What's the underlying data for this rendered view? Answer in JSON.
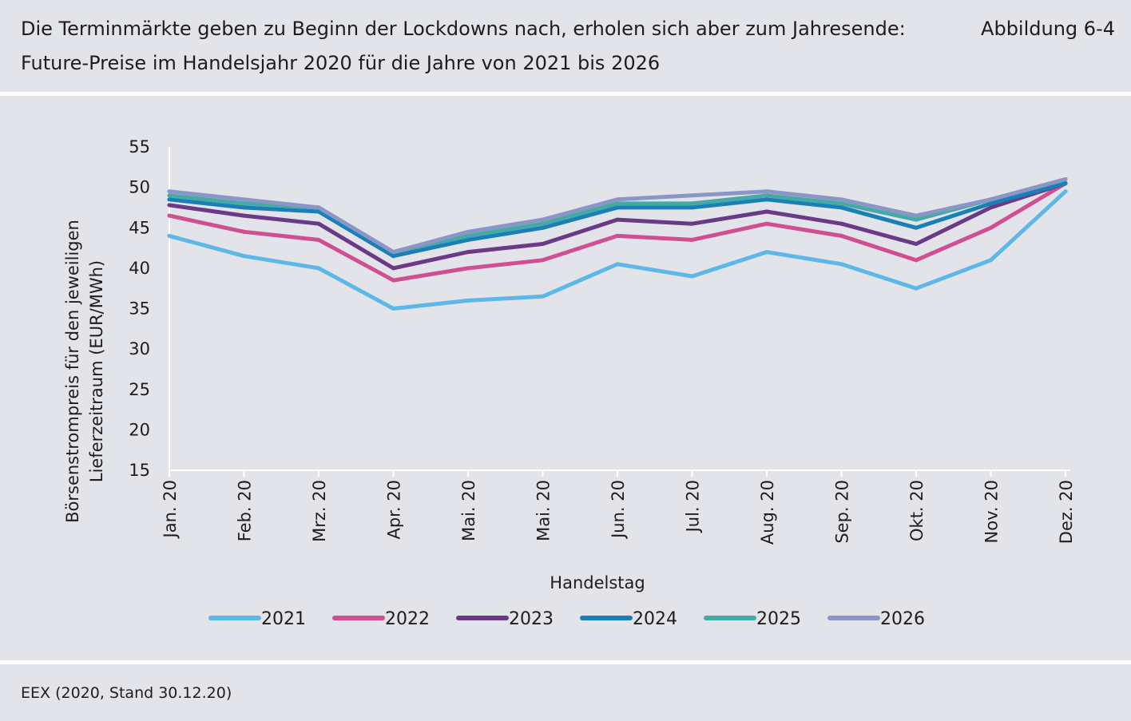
{
  "header": {
    "title_line1": "Die Terminmärkte geben zu Beginn der Lockdowns nach, erholen sich aber zum Jahresende:",
    "title_line2": "Future-Preise im Handelsjahr 2020 für die Jahre von 2021 bis 2026",
    "figure_label": "Abbildung 6-4"
  },
  "source": "EEX (2020, Stand 30.12.20)",
  "chart_data": {
    "type": "line",
    "xlabel": "Handelstag",
    "ylabel_lines": [
      "Börsenstrompreis für den jeweiligen",
      "Lieferzeitraum (EUR/MWh)"
    ],
    "ylim": [
      15,
      55
    ],
    "yticks": [
      15,
      20,
      25,
      30,
      35,
      40,
      45,
      50,
      55
    ],
    "categories": [
      "Jan. 20",
      "Feb. 20",
      "Mrz. 20",
      "Apr. 20",
      "Mai. 20",
      "Mai. 20",
      "Jun. 20",
      "Jul. 20",
      "Aug. 20",
      "Sep. 20",
      "Okt. 20",
      "Nov. 20",
      "Dez. 20"
    ],
    "grid": false,
    "legend_position": "bottom",
    "series": [
      {
        "name": "2021",
        "color": "#5db8e8",
        "values": [
          44.0,
          41.5,
          40.0,
          35.0,
          36.0,
          36.5,
          40.5,
          39.0,
          42.0,
          40.5,
          37.5,
          41.0,
          49.5
        ]
      },
      {
        "name": "2022",
        "color": "#d04f93",
        "values": [
          46.5,
          44.5,
          43.5,
          38.5,
          40.0,
          41.0,
          44.0,
          43.5,
          45.5,
          44.0,
          41.0,
          45.0,
          50.5
        ]
      },
      {
        "name": "2023",
        "color": "#6b3a87",
        "values": [
          47.8,
          46.5,
          45.5,
          40.0,
          42.0,
          43.0,
          46.0,
          45.5,
          47.0,
          45.5,
          43.0,
          47.5,
          50.5
        ]
      },
      {
        "name": "2024",
        "color": "#1a7fb5",
        "values": [
          48.5,
          47.5,
          47.0,
          41.5,
          43.5,
          45.0,
          47.5,
          47.5,
          48.5,
          47.5,
          45.0,
          48.0,
          50.5
        ]
      },
      {
        "name": "2025",
        "color": "#45a9a6",
        "values": [
          49.0,
          48.0,
          47.5,
          42.0,
          44.0,
          45.5,
          48.0,
          48.0,
          49.0,
          48.0,
          46.0,
          48.5,
          51.0
        ]
      },
      {
        "name": "2026",
        "color": "#8a97c6",
        "values": [
          49.5,
          48.5,
          47.5,
          42.0,
          44.5,
          46.0,
          48.5,
          49.0,
          49.5,
          48.5,
          46.5,
          48.5,
          51.0
        ]
      }
    ]
  }
}
